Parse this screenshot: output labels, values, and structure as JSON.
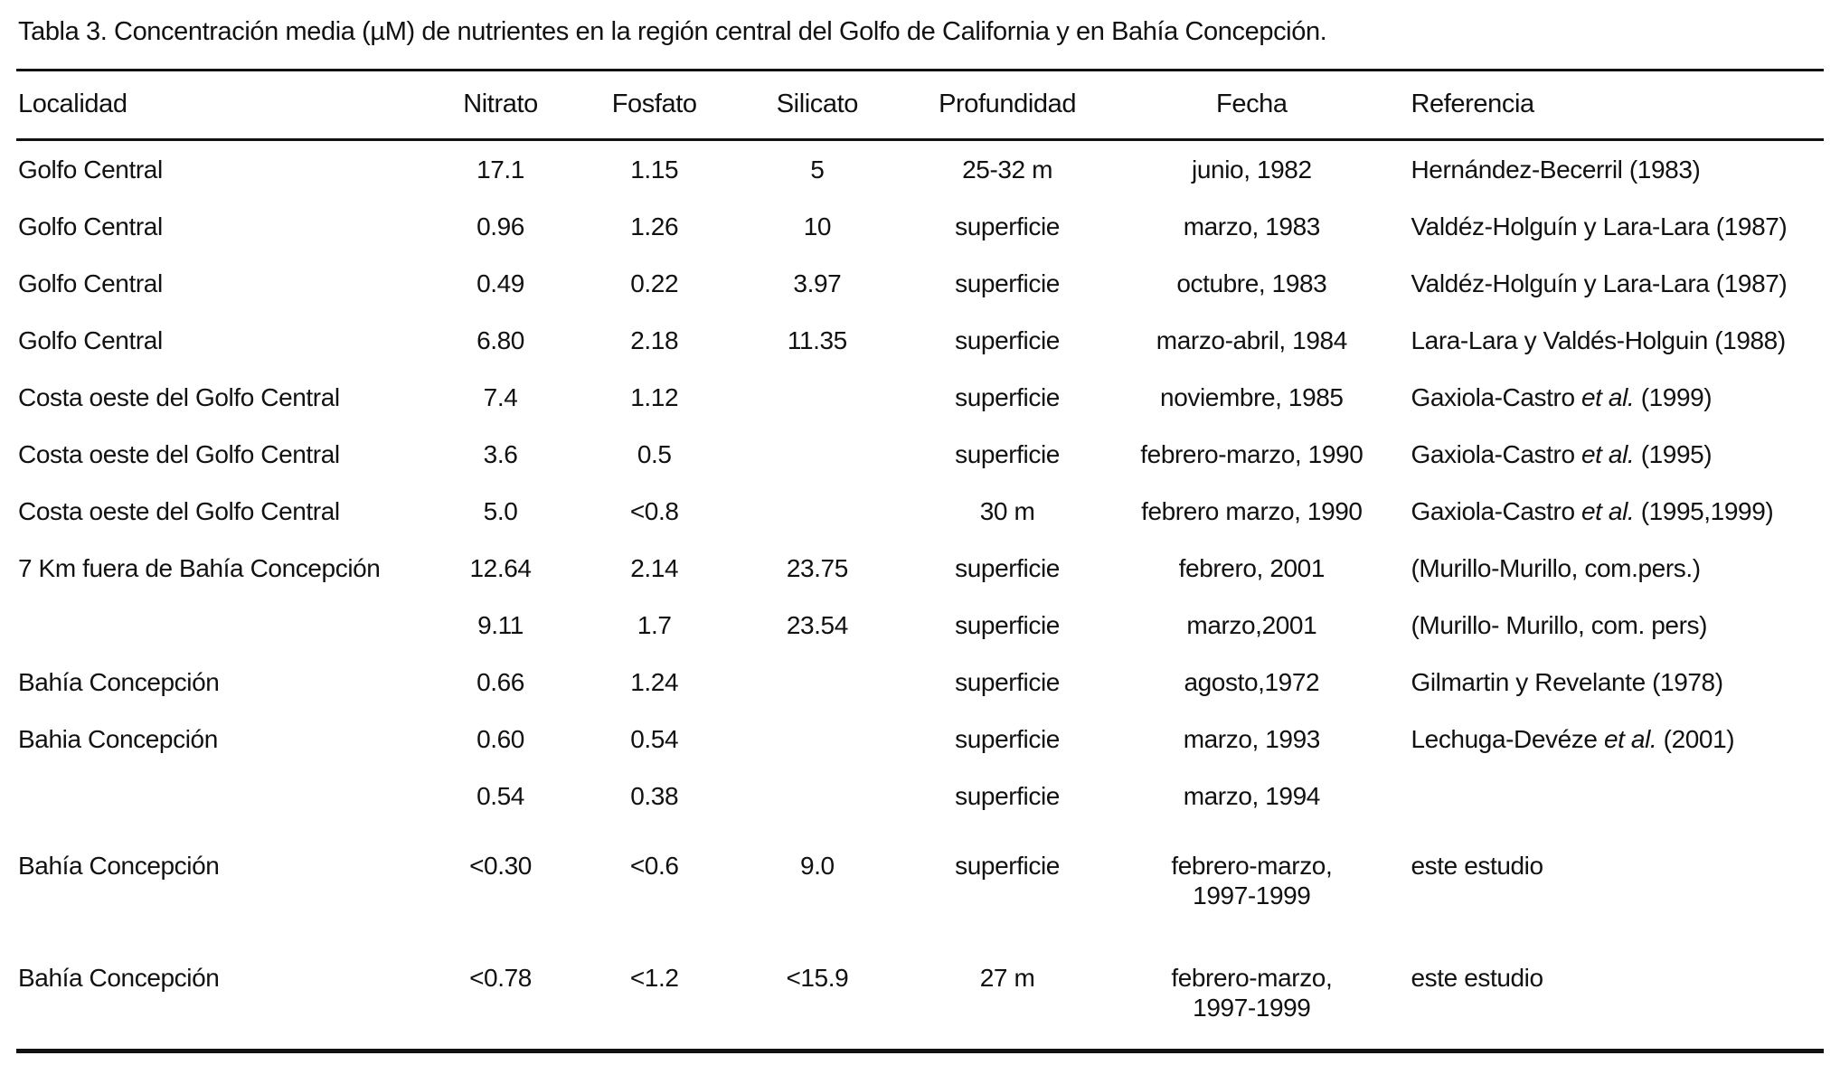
{
  "title": "Tabla 3. Concentración media (µM) de nutrientes en la región central del Golfo de California y en Bahía Concepción.",
  "table": {
    "column_keys": [
      "localidad",
      "nitrato",
      "fosfato",
      "silicato",
      "profundidad",
      "fecha",
      "referencia"
    ],
    "headers": [
      "Localidad",
      "Nitrato",
      "Fosfato",
      "Silicato",
      "Profundidad",
      "Fecha",
      "Referencia"
    ],
    "rows": [
      {
        "cells": [
          "Golfo Central",
          "17.1",
          "1.15",
          "5",
          "25-32 m",
          "junio, 1982",
          [
            {
              "text": "Hernández-Becerril (1983)",
              "italic": false
            }
          ]
        ]
      },
      {
        "cells": [
          "Golfo Central",
          "0.96",
          "1.26",
          "10",
          "superficie",
          "marzo, 1983",
          [
            {
              "text": "Valdéz-Holguín y Lara-Lara (1987)",
              "italic": false
            }
          ]
        ]
      },
      {
        "cells": [
          "Golfo Central",
          "0.49",
          "0.22",
          "3.97",
          "superficie",
          "octubre, 1983",
          [
            {
              "text": "Valdéz-Holguín y Lara-Lara (1987)",
              "italic": false
            }
          ]
        ]
      },
      {
        "cells": [
          "Golfo Central",
          "6.80",
          "2.18",
          "11.35",
          "superficie",
          "marzo-abril, 1984",
          [
            {
              "text": "Lara-Lara y Valdés-Holguin (1988)",
              "italic": false
            }
          ]
        ]
      },
      {
        "cells": [
          "Costa oeste del Golfo Central",
          "7.4",
          "1.12",
          "",
          "superficie",
          "noviembre, 1985",
          [
            {
              "text": "Gaxiola-Castro ",
              "italic": false
            },
            {
              "text": "et al.",
              "italic": true
            },
            {
              "text": " (1999)",
              "italic": false
            }
          ]
        ]
      },
      {
        "cells": [
          "Costa oeste del Golfo Central",
          "3.6",
          "0.5",
          "",
          "superficie",
          "febrero-marzo, 1990",
          [
            {
              "text": "Gaxiola-Castro ",
              "italic": false
            },
            {
              "text": "et al.",
              "italic": true
            },
            {
              "text": " (1995)",
              "italic": false
            }
          ]
        ]
      },
      {
        "cells": [
          "Costa oeste del Golfo Central",
          "5.0",
          "<0.8",
          "",
          "30 m",
          "febrero marzo, 1990",
          [
            {
              "text": "Gaxiola-Castro ",
              "italic": false
            },
            {
              "text": "et al.",
              "italic": true
            },
            {
              "text": " (1995,1999)",
              "italic": false
            }
          ]
        ]
      },
      {
        "cells": [
          "7 Km fuera de Bahía Concepción",
          "12.64",
          "2.14",
          "23.75",
          "superficie",
          "febrero, 2001",
          [
            {
              "text": "(Murillo-Murillo, com.pers.)",
              "italic": false
            }
          ]
        ]
      },
      {
        "cells": [
          "",
          "9.11",
          "1.7",
          "23.54",
          "superficie",
          "marzo,2001",
          [
            {
              "text": "(Murillo- Murillo, com. pers)",
              "italic": false
            }
          ]
        ]
      },
      {
        "cells": [
          "Bahía Concepción",
          "0.66",
          "1.24",
          "",
          "superficie",
          "agosto,1972",
          [
            {
              "text": "Gilmartin y Revelante (1978)",
              "italic": false
            }
          ]
        ]
      },
      {
        "cells": [
          "Bahia Concepción",
          "0.60",
          "0.54",
          "",
          "superficie",
          "marzo, 1993",
          [
            {
              "text": "Lechuga-Devéze ",
              "italic": false
            },
            {
              "text": "et al.",
              "italic": true
            },
            {
              "text": " (2001)",
              "italic": false
            }
          ]
        ]
      },
      {
        "cells": [
          "",
          "0.54",
          "0.38",
          "",
          "superficie",
          "marzo, 1994",
          [
            {
              "text": "",
              "italic": false
            }
          ]
        ]
      },
      {
        "cells": [
          "Bahía Concepción",
          "<0.30",
          "<0.6",
          "9.0",
          "superficie",
          "febrero-marzo,\n1997-1999",
          [
            {
              "text": "este estudio",
              "italic": false
            }
          ]
        ]
      },
      {
        "cells": [
          "Bahía Concepción",
          "<0.78",
          "<1.2",
          "<15.9",
          "27 m",
          "febrero-marzo,\n1997-1999",
          [
            {
              "text": "este estudio",
              "italic": false
            }
          ]
        ]
      }
    ]
  }
}
